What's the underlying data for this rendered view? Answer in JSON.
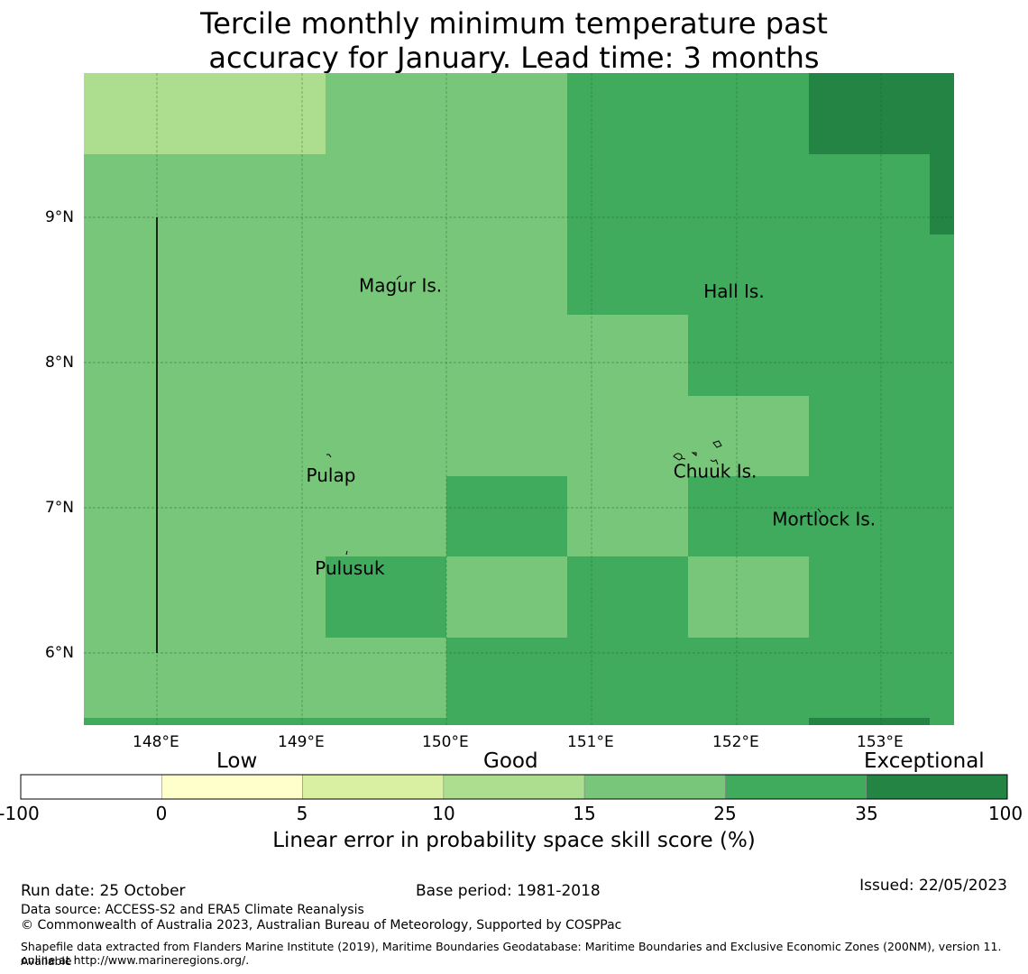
{
  "title_line1": "Tercile monthly minimum temperature past",
  "title_line2": "accuracy for January. Lead time: 3 months",
  "map": {
    "lat_labels": [
      "9°N",
      "8°N",
      "7°N",
      "6°N"
    ],
    "lon_labels": [
      "148°E",
      "149°E",
      "150°E",
      "151°E",
      "152°E",
      "153°E"
    ],
    "lat_range": [
      5.5,
      10.0
    ],
    "lon_range": [
      147.5,
      153.5
    ],
    "grid": true,
    "places": [
      {
        "name": "Magur Is.",
        "lon": 149.68,
        "lat": 8.53
      },
      {
        "name": "Hall Is.",
        "lon": 151.98,
        "lat": 8.49
      },
      {
        "name": "Pulap",
        "lon": 149.2,
        "lat": 7.22
      },
      {
        "name": "Chuuk Is.",
        "lon": 151.85,
        "lat": 7.25
      },
      {
        "name": "Mortlock Is.",
        "lon": 152.6,
        "lat": 6.92
      },
      {
        "name": "Pulusuk",
        "lon": 149.33,
        "lat": 6.58
      }
    ],
    "colors": {
      "class_15_25": "#78c679",
      "class_25_35": "#41ab5d",
      "class_35_100": "#238443",
      "class_10_15": "#addd8e"
    }
  },
  "colorbar": {
    "category_low": "Low",
    "category_good": "Good",
    "category_exceptional": "Exceptional",
    "boundaries": [
      "-100",
      "0",
      "5",
      "10",
      "15",
      "25",
      "35",
      "100"
    ],
    "colors": [
      "#ffffff",
      "#ffffcc",
      "#d9f0a3",
      "#addd8e",
      "#78c679",
      "#41ab5d",
      "#238443"
    ],
    "label": "Linear error in probability space skill score (%)"
  },
  "footer": {
    "run_date": "Run date: 25 October",
    "base_period": "Base period: 1981-2018",
    "issued": "Issued: 22/05/2023",
    "data_source": "Data source: ACCESS-S2 and ERA5 Climate Reanalysis",
    "copyright": "© Commonwealth of Australia 2023, Australian Bureau of Meteorology, Supported by COSPPac",
    "shapefile_line1": "Shapefile data extracted from Flanders Marine Institute (2019), Maritime Boundaries Geodatabase: Maritime Boundaries and Exclusive Economic Zones (200NM), version 11. Available",
    "shapefile_line2": "online at http://www.marineregions.org/."
  }
}
